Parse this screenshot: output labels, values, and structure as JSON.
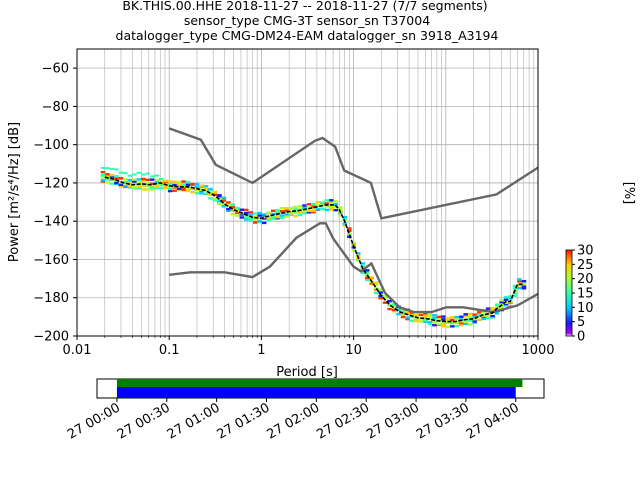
{
  "chart_data": [
    {
      "type": "line",
      "title_lines": [
        "BK.THIS.00.HHE   2018-11-27 -- 2018-11-27  (7/7 segments)",
        "sensor_type CMG-3T sensor_sn T37004",
        "datalogger_type CMG-DM24-EAM datalogger_sn 3918_A3194"
      ],
      "xlabel": "Period [s]",
      "ylabel": "Power [m²/s⁴/Hz] [dB]",
      "xscale": "log",
      "xlim": [
        0.01,
        1000
      ],
      "ylim": [
        -200,
        -50
      ],
      "xticks": [
        "0.01",
        "0.1",
        "1",
        "10",
        "100",
        "1000"
      ],
      "yticks": [
        "−60",
        "−80",
        "−100",
        "−120",
        "−140",
        "−160",
        "−180",
        "−200"
      ],
      "grid": true,
      "series": [
        {
          "role": "nhnm",
          "color": "#666666",
          "x": [
            0.1,
            0.22,
            0.32,
            0.8,
            3.8,
            4.6,
            6.3,
            7.9,
            15.4,
            20,
            354.8,
            1000
          ],
          "y": [
            -91.5,
            -97.4,
            -110.5,
            -120,
            -98,
            -96.5,
            -101,
            -113.5,
            -120,
            -138.5,
            -126,
            -112
          ]
        },
        {
          "role": "nlnm",
          "color": "#666666",
          "x": [
            0.1,
            0.17,
            0.4,
            0.8,
            1.24,
            2.4,
            4.3,
            5.0,
            6.0,
            10.0,
            12.0,
            15.6,
            21.9,
            31.6,
            45,
            70,
            101,
            154,
            328,
            600,
            1000
          ],
          "y": [
            -168,
            -166.7,
            -166.7,
            -169.2,
            -163.7,
            -148.6,
            -141.1,
            -141.1,
            -149,
            -163.8,
            -166.2,
            -162.1,
            -177.5,
            -185,
            -187.5,
            -187.5,
            -185,
            -185,
            -187.5,
            -184,
            -178
          ]
        },
        {
          "role": "psd-mean",
          "color": "#000000",
          "x": [
            0.02,
            0.025,
            0.032,
            0.04,
            0.05,
            0.063,
            0.08,
            0.1,
            0.13,
            0.16,
            0.2,
            0.25,
            0.32,
            0.4,
            0.5,
            0.63,
            0.8,
            1.0,
            1.26,
            1.6,
            2.0,
            2.5,
            3.2,
            4.0,
            5.0,
            6.3,
            7.0,
            8.0,
            10,
            12.6,
            16,
            20,
            25,
            32,
            40,
            50,
            63,
            80,
            100,
            126,
            160,
            200,
            250,
            320,
            350,
            400,
            450,
            500,
            600,
            700
          ],
          "y": [
            -117,
            -118,
            -120,
            -121,
            -120.5,
            -121,
            -120,
            -121.5,
            -122,
            -122,
            -123,
            -124,
            -127,
            -131,
            -134,
            -136,
            -138,
            -138.5,
            -137,
            -136,
            -135,
            -134.5,
            -133.5,
            -132.5,
            -131.5,
            -131.5,
            -134,
            -140,
            -153,
            -165,
            -172,
            -179,
            -184,
            -187.5,
            -189,
            -190.5,
            -191,
            -192,
            -192.5,
            -192.5,
            -191.5,
            -191,
            -189,
            -188,
            -186,
            -184,
            -182,
            -182,
            -173,
            -173
          ]
        }
      ],
      "colorbar": {
        "label": "[%]",
        "ticks": [
          "0",
          "5",
          "10",
          "15",
          "20",
          "25",
          "30"
        ]
      }
    },
    {
      "type": "timeline",
      "xticks": [
        "27 00:00",
        "27 00:30",
        "27 01:00",
        "27 01:30",
        "27 02:00",
        "27 02:30",
        "27 03:00",
        "27 03:30",
        "27 04:00"
      ],
      "xlim_minutes": [
        -12,
        257
      ],
      "bars": [
        {
          "role": "data-coverage",
          "color": "#008000",
          "start_min": 0,
          "end_min": 244
        },
        {
          "role": "psd-coverage",
          "color": "#0000ff",
          "start_min": 0,
          "end_min": 240
        }
      ]
    }
  ]
}
